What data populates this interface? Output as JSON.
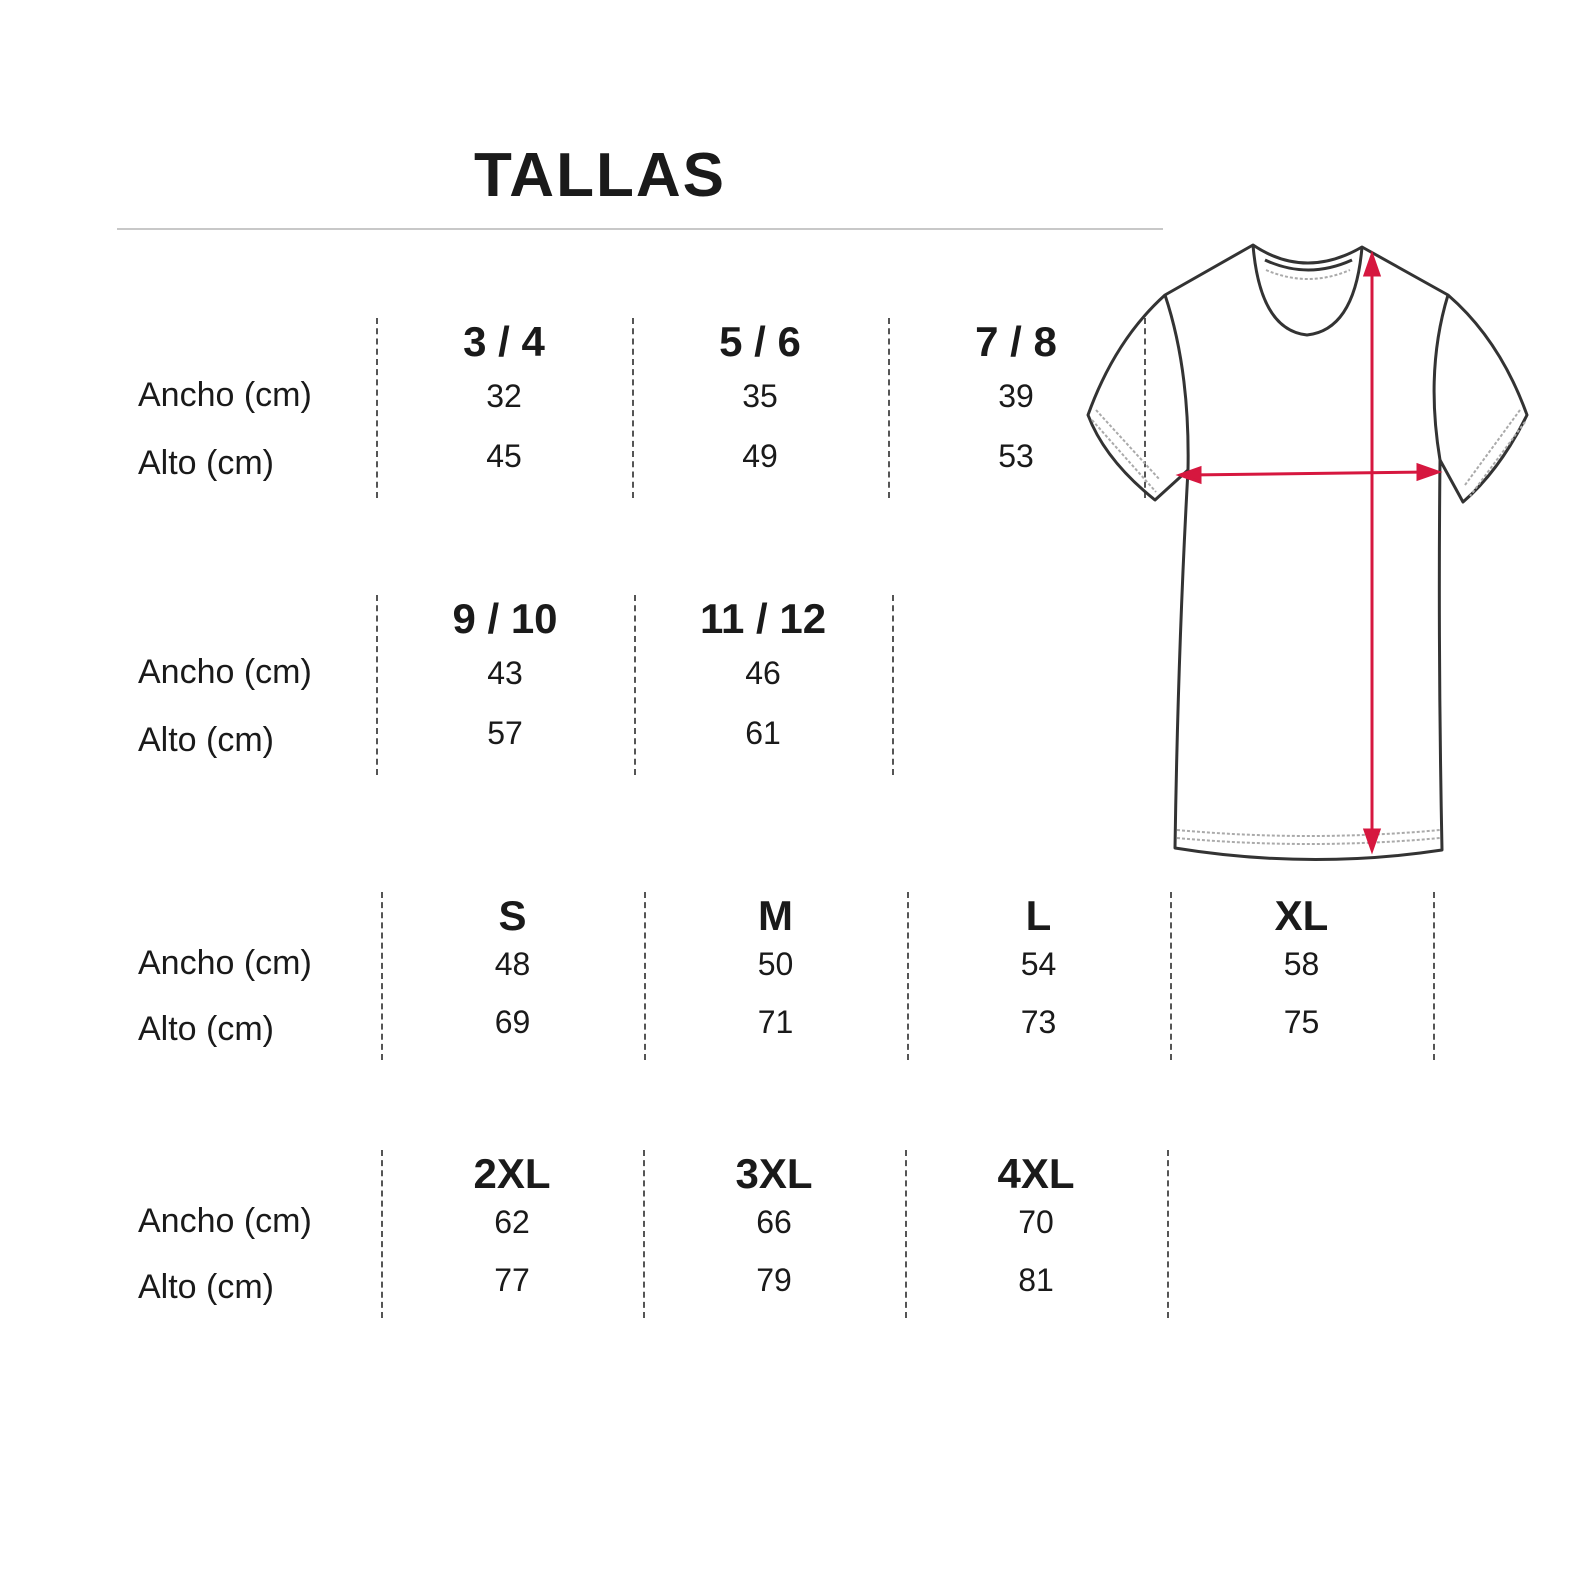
{
  "title": "TALLAS",
  "row_labels": {
    "width": "Ancho (cm)",
    "height": "Alto (cm)"
  },
  "accent_color": "#d6173f",
  "blocks": [
    {
      "sizes": [
        {
          "size": "3 / 4",
          "ancho": "32",
          "alto": "45"
        },
        {
          "size": "5 / 6",
          "ancho": "35",
          "alto": "49"
        },
        {
          "size": "7 / 8",
          "ancho": "39",
          "alto": "53"
        }
      ]
    },
    {
      "sizes": [
        {
          "size": "9 / 10",
          "ancho": "43",
          "alto": "57"
        },
        {
          "size": "11 / 12",
          "ancho": "46",
          "alto": "61"
        }
      ]
    },
    {
      "sizes": [
        {
          "size": "S",
          "ancho": "48",
          "alto": "69"
        },
        {
          "size": "M",
          "ancho": "50",
          "alto": "71"
        },
        {
          "size": "L",
          "ancho": "54",
          "alto": "73"
        },
        {
          "size": "XL",
          "ancho": "58",
          "alto": "75"
        }
      ]
    },
    {
      "sizes": [
        {
          "size": "2XL",
          "ancho": "62",
          "alto": "77"
        },
        {
          "size": "3XL",
          "ancho": "66",
          "alto": "79"
        },
        {
          "size": "4XL",
          "ancho": "70",
          "alto": "81"
        }
      ]
    }
  ],
  "illustration": {
    "icon": "t-shirt-measurement-icon"
  }
}
